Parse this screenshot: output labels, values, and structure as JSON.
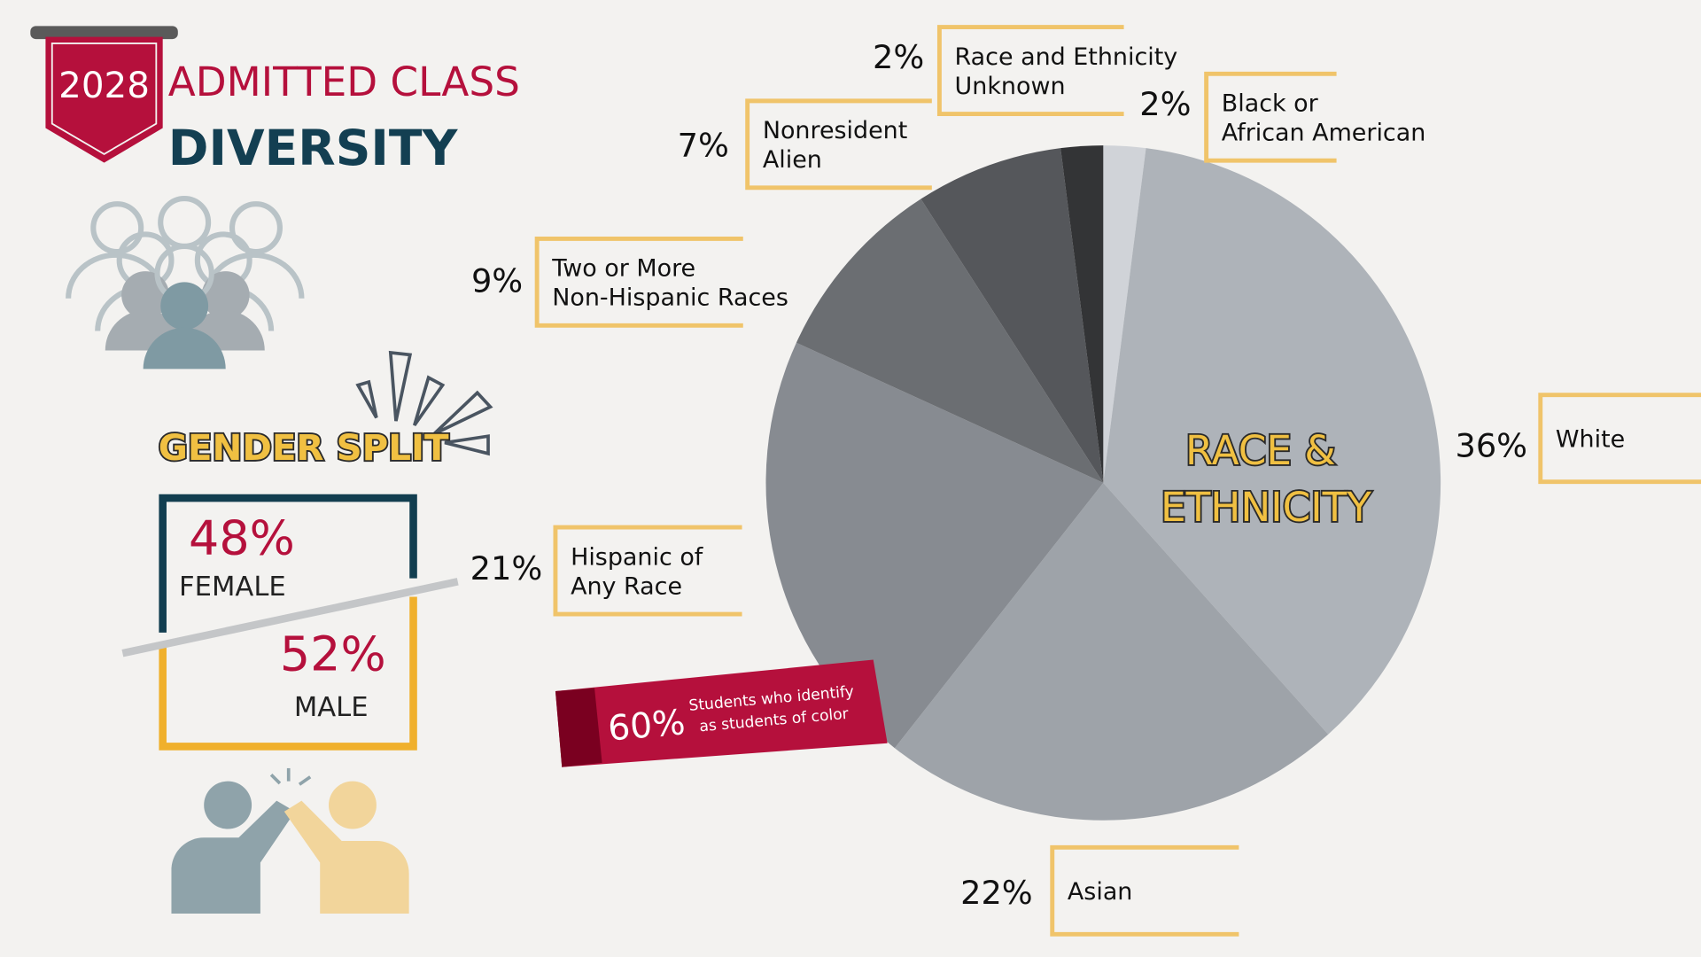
{
  "header": {
    "year": "2028",
    "title_line1": "ADMITTED CLASS",
    "title_line2": "DIVERSITY"
  },
  "gender": {
    "title": "GENDER SPLIT",
    "female_pct": "48%",
    "female_label": "FEMALE",
    "male_pct": "52%",
    "male_label": "MALE"
  },
  "callout": {
    "value": "60%",
    "line1": "Students who identify",
    "line2": "as students of color"
  },
  "chart_data": {
    "type": "pie",
    "title": [
      "RACE &",
      "ETHNICITY"
    ],
    "categories": [
      [
        "Black or",
        "African American"
      ],
      [
        "White"
      ],
      [
        "Asian"
      ],
      [
        "Hispanic of",
        "Any Race"
      ],
      [
        "Two or More",
        "Non-Hispanic Races"
      ],
      [
        "Nonresident",
        "Alien"
      ],
      [
        "Race and Ethnicity",
        "Unknown"
      ]
    ],
    "values": [
      2,
      36,
      22,
      21,
      9,
      7,
      2
    ],
    "value_labels": [
      "2%",
      "36%",
      "22%",
      "21%",
      "9%",
      "7%",
      "2%"
    ],
    "colors": [
      "#d0d3d8",
      "#aeb3b9",
      "#9ea3a9",
      "#878b91",
      "#6b6e72",
      "#55575b",
      "#333436"
    ]
  }
}
